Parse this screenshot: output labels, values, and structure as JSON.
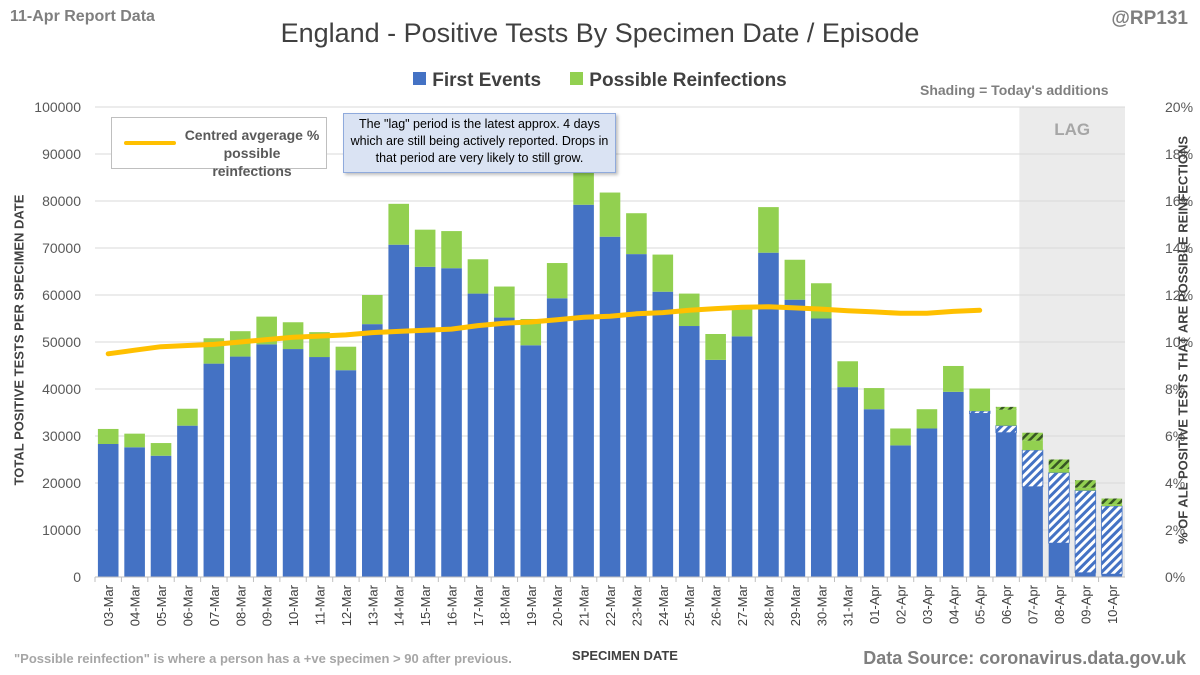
{
  "header": {
    "report_label": "11-Apr Report Data",
    "handle": "@RP131",
    "shading_note": "Shading = Today's additions"
  },
  "footer": {
    "footnote": "\"Possible reinfection\" is where a person has a +ve specimen > 90 after previous.",
    "source": "Data Source: coronavirus.data.gov.uk"
  },
  "annotations": {
    "avg_legend": "Centred avgerage % possible reinfections",
    "lag_label": "LAG",
    "lag_note": "The \"lag\" period is the latest approx. 4 days which are still being actively reported. Drops in that period are very likely to still grow."
  },
  "colors": {
    "first_events": "#4472c4",
    "reinfections": "#92d050",
    "average_line": "#ffc000",
    "lag_shade": "#ebebeb"
  },
  "chart_data": {
    "type": "bar",
    "stacked": true,
    "title": "England - Positive Tests By Specimen Date / Episode",
    "xlabel": "SPECIMEN DATE",
    "ylabel": "TOTAL POSITIVE TESTS PER SPECIMEN DATE",
    "y2label": "% OF ALL POSITIVE TESTS THAT ARE POSSIBLE REINFECTIONS",
    "ylim": [
      0,
      100000
    ],
    "yticks": [
      "0",
      "10000",
      "20000",
      "30000",
      "40000",
      "50000",
      "60000",
      "70000",
      "80000",
      "90000",
      "100000"
    ],
    "y2lim": [
      0,
      20
    ],
    "y2ticks": [
      "0%",
      "2%",
      "4%",
      "6%",
      "8%",
      "10%",
      "12%",
      "14%",
      "16%",
      "18%",
      "20%"
    ],
    "categories": [
      "03-Mar",
      "04-Mar",
      "05-Mar",
      "06-Mar",
      "07-Mar",
      "08-Mar",
      "09-Mar",
      "10-Mar",
      "11-Mar",
      "12-Mar",
      "13-Mar",
      "14-Mar",
      "15-Mar",
      "16-Mar",
      "17-Mar",
      "18-Mar",
      "19-Mar",
      "20-Mar",
      "21-Mar",
      "22-Mar",
      "23-Mar",
      "24-Mar",
      "25-Mar",
      "26-Mar",
      "27-Mar",
      "28-Mar",
      "29-Mar",
      "30-Mar",
      "31-Mar",
      "01-Apr",
      "02-Apr",
      "03-Apr",
      "04-Apr",
      "05-Apr",
      "06-Apr",
      "07-Apr",
      "08-Apr",
      "09-Apr",
      "10-Apr"
    ],
    "legend": [
      "First Events",
      "Possible Reinfections"
    ],
    "legend_position": "top-center",
    "lag_start": "07-Apr",
    "series": [
      {
        "name": "First Events",
        "values": [
          28300,
          27600,
          25800,
          32200,
          45400,
          46900,
          49500,
          48500,
          46800,
          44000,
          53800,
          70700,
          66000,
          65700,
          60300,
          55200,
          49300,
          59300,
          79200,
          72400,
          68700,
          60700,
          53400,
          46200,
          51200,
          69000,
          59000,
          55000,
          40400,
          35700,
          28000,
          31600,
          39400,
          35300,
          32200,
          27000,
          22200,
          18400,
          15100
        ]
      },
      {
        "name": "Possible Reinfections",
        "values": [
          3200,
          2900,
          2700,
          3600,
          5400,
          5400,
          5900,
          5700,
          5300,
          5000,
          6200,
          8700,
          7900,
          7900,
          7300,
          6600,
          5600,
          7500,
          9400,
          9400,
          8700,
          7900,
          6900,
          5500,
          6400,
          9700,
          8500,
          7500,
          5500,
          4500,
          3600,
          4100,
          5500,
          4800,
          4000,
          3700,
          2800,
          2200,
          1600
        ]
      },
      {
        "name": "Today's additions (First Events)",
        "values": [
          0,
          0,
          0,
          0,
          0,
          0,
          0,
          0,
          0,
          0,
          0,
          0,
          0,
          0,
          0,
          0,
          0,
          0,
          0,
          0,
          0,
          0,
          0,
          0,
          0,
          0,
          0,
          0,
          0,
          0,
          0,
          0,
          0,
          500,
          1500,
          7800,
          15000,
          17500,
          14500
        ]
      },
      {
        "name": "Today's additions (Possible Reinfections)",
        "values": [
          0,
          0,
          0,
          0,
          0,
          0,
          0,
          0,
          0,
          0,
          0,
          0,
          0,
          0,
          0,
          0,
          0,
          0,
          0,
          0,
          0,
          0,
          0,
          0,
          0,
          0,
          0,
          0,
          0,
          0,
          0,
          0,
          0,
          0,
          600,
          1700,
          2000,
          1600,
          1200
        ]
      },
      {
        "name": "Centred avgerage % possible reinfections",
        "axis": "right",
        "values": [
          9.5,
          9.65,
          9.8,
          9.85,
          9.9,
          10.0,
          10.1,
          10.2,
          10.25,
          10.3,
          10.4,
          10.45,
          10.5,
          10.55,
          10.7,
          10.8,
          10.85,
          10.95,
          11.05,
          11.1,
          11.2,
          11.25,
          11.35,
          11.42,
          11.48,
          11.5,
          11.45,
          11.4,
          11.33,
          11.28,
          11.22,
          11.22,
          11.3,
          11.35,
          null,
          null,
          null,
          null,
          null
        ]
      }
    ]
  }
}
